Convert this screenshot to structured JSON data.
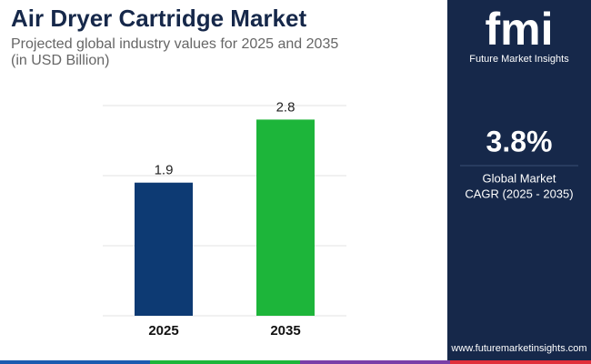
{
  "chart_data": {
    "type": "bar",
    "title": "Air Dryer Cartridge Market",
    "subtitle": [
      "Projected global industry values for 2025 and 2035",
      "(in USD Billion)"
    ],
    "categories": [
      "2025",
      "2035"
    ],
    "values": [
      1.9,
      2.8
    ],
    "colors": [
      "#0d3a73",
      "#1db53a"
    ],
    "ylim": [
      0,
      3
    ],
    "yticks": [
      0,
      1,
      2,
      3
    ],
    "grid": true
  },
  "sidebar": {
    "logo": "fmi",
    "brand": "Future Market Insights",
    "cagr": "3.8%",
    "cagr_label": [
      "Global Market",
      "CAGR (2025 - 2035)"
    ],
    "website": "www.futuremarketinsights.com"
  }
}
